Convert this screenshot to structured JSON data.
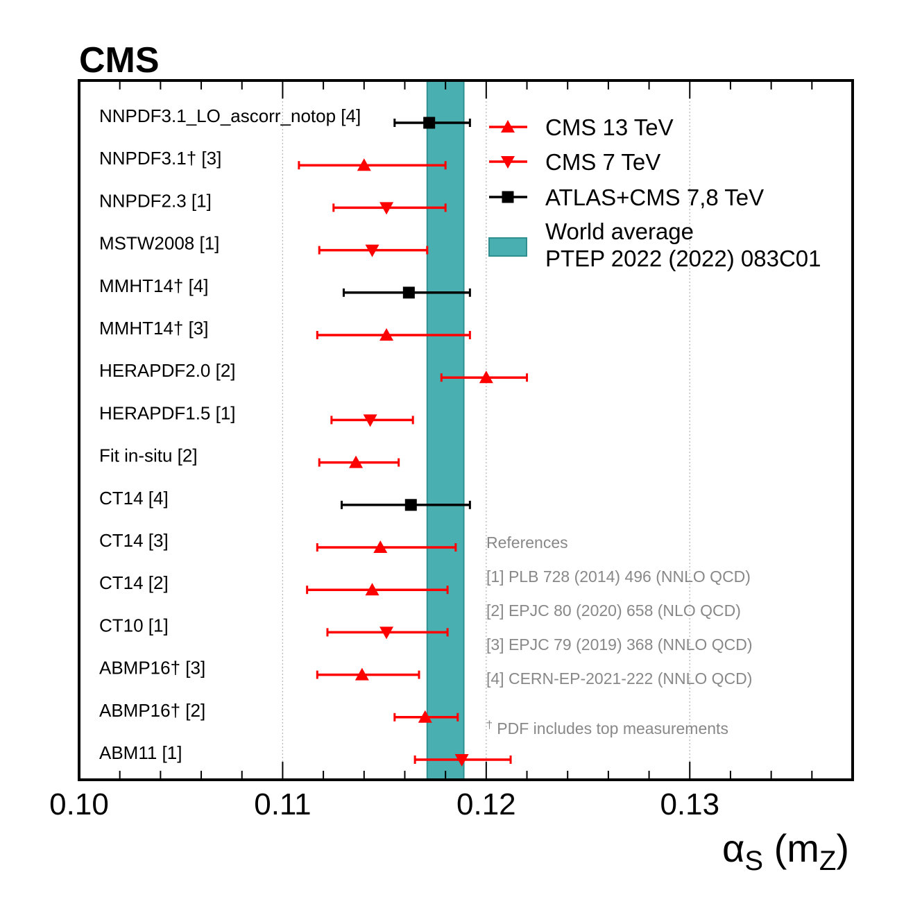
{
  "header": {
    "experiment": "CMS"
  },
  "chart_data": {
    "type": "forest",
    "xlabel": "αS (mZ)",
    "xlabel_parts": {
      "symbol": "α",
      "sub1": "S",
      "open": " (m",
      "sub2": "Z",
      "close": ")"
    },
    "xlim": [
      0.1,
      0.138
    ],
    "xticks": [
      0.1,
      0.11,
      0.12,
      0.13
    ],
    "xtick_labels": [
      "0.10",
      "0.11",
      "0.12",
      "0.13"
    ],
    "grid_x": [
      0.11,
      0.12,
      0.13
    ],
    "band": {
      "name": "World average",
      "low": 0.1171,
      "high": 0.1189,
      "color": "#4aafb0"
    },
    "series": [
      {
        "name": "CMS 13 TeV",
        "marker": "triangle-up",
        "color": "#ff0000"
      },
      {
        "name": "CMS 7 TeV",
        "marker": "triangle-down",
        "color": "#ff0000"
      },
      {
        "name": "ATLAS+CMS  7,8 TeV",
        "marker": "square",
        "color": "#000000"
      }
    ],
    "points": [
      {
        "label": "NNPDF3.1_LO_ascorr_notop [4]",
        "series": 2,
        "value": 0.1172,
        "low": 0.1155,
        "high": 0.1192
      },
      {
        "label": "NNPDF3.1† [3]",
        "series": 0,
        "value": 0.114,
        "low": 0.1108,
        "high": 0.118
      },
      {
        "label": "NNPDF2.3 [1]",
        "series": 1,
        "value": 0.1151,
        "low": 0.1125,
        "high": 0.118
      },
      {
        "label": "MSTW2008 [1]",
        "series": 1,
        "value": 0.1144,
        "low": 0.1118,
        "high": 0.1171
      },
      {
        "label": "MMHT14† [4]",
        "series": 2,
        "value": 0.1162,
        "low": 0.113,
        "high": 0.1192
      },
      {
        "label": "MMHT14† [3]",
        "series": 0,
        "value": 0.1151,
        "low": 0.1117,
        "high": 0.1192
      },
      {
        "label": "HERAPDF2.0 [2]",
        "series": 0,
        "value": 0.12,
        "low": 0.1178,
        "high": 0.122
      },
      {
        "label": "HERAPDF1.5 [1]",
        "series": 1,
        "value": 0.1143,
        "low": 0.1124,
        "high": 0.1164
      },
      {
        "label": "Fit in-situ [2]",
        "series": 0,
        "value": 0.1136,
        "low": 0.1118,
        "high": 0.1157
      },
      {
        "label": "CT14 [4]",
        "series": 2,
        "value": 0.1163,
        "low": 0.1129,
        "high": 0.1192
      },
      {
        "label": "CT14 [3]",
        "series": 0,
        "value": 0.1148,
        "low": 0.1117,
        "high": 0.1185
      },
      {
        "label": "CT14 [2]",
        "series": 0,
        "value": 0.1144,
        "low": 0.1112,
        "high": 0.1181
      },
      {
        "label": "CT10 [1]",
        "series": 1,
        "value": 0.1151,
        "low": 0.1122,
        "high": 0.1181
      },
      {
        "label": "ABMP16† [3]",
        "series": 0,
        "value": 0.1139,
        "low": 0.1117,
        "high": 0.1167
      },
      {
        "label": "ABMP16† [2]",
        "series": 0,
        "value": 0.117,
        "low": 0.1155,
        "high": 0.1186
      },
      {
        "label": "ABM11 [1]",
        "series": 1,
        "value": 0.1188,
        "low": 0.1165,
        "high": 0.1212
      }
    ],
    "legend": {
      "placement": "top-right",
      "entries": [
        "CMS 13 TeV",
        "CMS 7 TeV",
        "ATLAS+CMS  7,8 TeV"
      ],
      "band_lines": [
        "World average",
        "PTEP 2022 (2022) 083C01"
      ]
    },
    "references": {
      "title": "References",
      "items": [
        "[1] PLB 728 (2014) 496 (NNLO QCD)",
        "[2] EPJC 80 (2020) 658 (NLO QCD)",
        "[3] EPJC 79 (2019) 368 (NNLO QCD)",
        "[4] CERN-EP-2021-222 (NNLO QCD)"
      ],
      "footnote_mark": "†",
      "footnote": " PDF includes top measurements"
    }
  }
}
